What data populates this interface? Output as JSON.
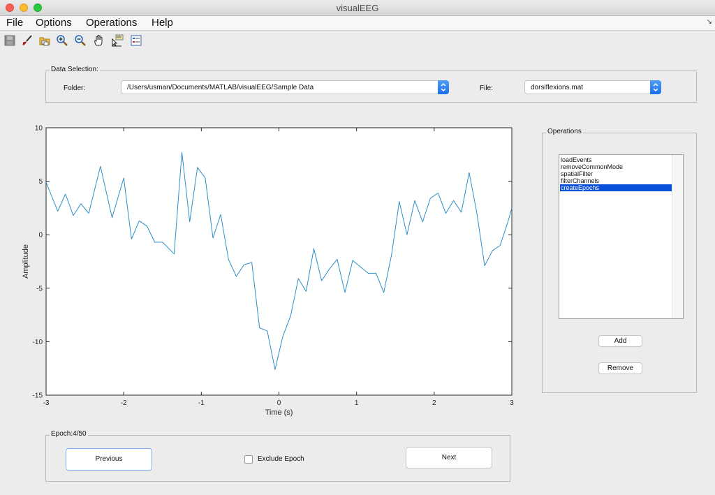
{
  "window": {
    "title": "visualEEG"
  },
  "menu": {
    "items": [
      "File",
      "Options",
      "Operations",
      "Help"
    ]
  },
  "toolbar": {
    "icons": [
      "save-icon",
      "brush-icon",
      "open-folder-icon",
      "zoom-in-icon",
      "zoom-out-icon",
      "pan-hand-icon",
      "data-cursor-icon",
      "legend-icon"
    ]
  },
  "data_selection": {
    "legend": "Data Selection:",
    "folder_label": "Folder:",
    "folder_value": "/Users/usman/Documents/MATLAB/visualEEG/Sample Data",
    "file_label": "File:",
    "file_value": "dorsiflexions.mat"
  },
  "operations": {
    "legend": "Operations",
    "items": [
      "loadEvents",
      "removeCommonMode",
      "spatialFilter",
      "filterChannels",
      "createEpochs"
    ],
    "selected_index": 4,
    "add_label": "Add",
    "remove_label": "Remove"
  },
  "epoch": {
    "legend": "Epoch:4/50",
    "previous_label": "Previous",
    "exclude_label": "Exclude Epoch",
    "exclude_checked": false,
    "next_label": "Next"
  },
  "chart_data": {
    "type": "line",
    "xlabel": "Time (s)",
    "ylabel": "Amplitude",
    "xlim": [
      -3,
      3
    ],
    "ylim": [
      -15,
      10
    ],
    "xticks": [
      -3,
      -2,
      -1,
      0,
      1,
      2,
      3
    ],
    "yticks": [
      10,
      5,
      0,
      -5,
      -10,
      -15
    ],
    "grid": false,
    "line_color": "#2c8fc9",
    "x": [
      -3.0,
      -2.85,
      -2.75,
      -2.65,
      -2.55,
      -2.45,
      -2.3,
      -2.15,
      -2.0,
      -1.9,
      -1.8,
      -1.7,
      -1.6,
      -1.5,
      -1.35,
      -1.25,
      -1.15,
      -1.05,
      -0.95,
      -0.85,
      -0.75,
      -0.65,
      -0.55,
      -0.45,
      -0.35,
      -0.25,
      -0.15,
      -0.05,
      0.05,
      0.15,
      0.25,
      0.35,
      0.45,
      0.55,
      0.65,
      0.75,
      0.85,
      0.95,
      1.05,
      1.15,
      1.25,
      1.35,
      1.45,
      1.55,
      1.65,
      1.75,
      1.85,
      1.95,
      2.05,
      2.15,
      2.25,
      2.35,
      2.45,
      2.55,
      2.65,
      2.75,
      2.85,
      2.95,
      3.0
    ],
    "y": [
      4.9,
      2.2,
      3.8,
      1.8,
      2.9,
      2.0,
      6.4,
      1.6,
      5.3,
      -0.4,
      1.3,
      0.8,
      -0.7,
      -0.7,
      -1.8,
      7.7,
      1.2,
      6.3,
      5.3,
      -0.3,
      1.9,
      -2.3,
      -3.9,
      -2.8,
      -2.6,
      -8.7,
      -9.0,
      -12.6,
      -9.5,
      -7.6,
      -4.1,
      -5.3,
      -1.3,
      -4.3,
      -3.2,
      -2.3,
      -5.4,
      -2.4,
      -3.0,
      -3.6,
      -3.6,
      -5.4,
      -1.9,
      3.1,
      0.0,
      3.2,
      1.2,
      3.4,
      3.9,
      2.0,
      3.2,
      2.1,
      5.8,
      2.0,
      -2.9,
      -1.5,
      -1.0,
      1.2,
      2.5
    ]
  }
}
